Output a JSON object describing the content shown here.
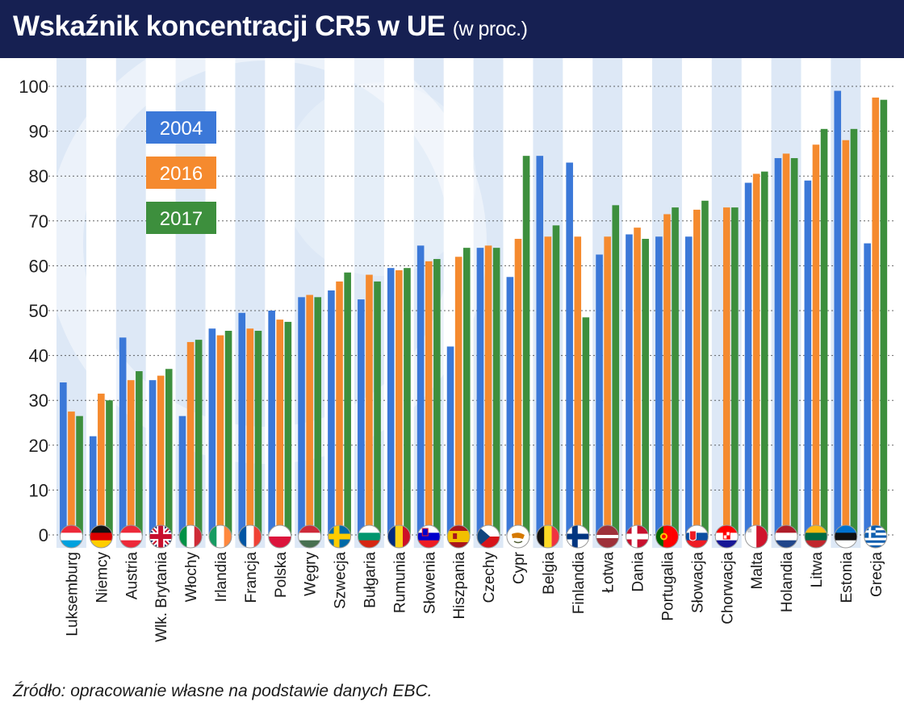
{
  "title": "Wskaźnik koncentracji CR5 w UE",
  "title_suffix": "(w proc.)",
  "source": "Źródło: opracowanie własne na podstawie danych EBC.",
  "colors": {
    "header_bg": "#162052",
    "series_2004": "#3b78d8",
    "series_2016": "#f58a2e",
    "series_2017": "#3d8f3d",
    "stripe": "#dde8f6"
  },
  "chart_data": {
    "type": "bar",
    "ylim": [
      0,
      100
    ],
    "yticks": [
      0,
      10,
      20,
      30,
      40,
      50,
      60,
      70,
      80,
      90,
      100
    ],
    "grid": true,
    "legend_position": "top-left",
    "categories": [
      "Luksemburg",
      "Niemcy",
      "Austria",
      "Wlk. Brytania",
      "Włochy",
      "Irlandia",
      "Francja",
      "Polska",
      "Węgry",
      "Szwecja",
      "Bułgaria",
      "Rumunia",
      "Słowenia",
      "Hiszpania",
      "Czechy",
      "Cypr",
      "Belgia",
      "Finlandia",
      "Łotwa",
      "Dania",
      "Portugalia",
      "Słowacja",
      "Chorwacja",
      "Malta",
      "Holandia",
      "Litwa",
      "Estonia",
      "Grecja"
    ],
    "flag_icons": [
      "flag-luxembourg-icon",
      "flag-germany-icon",
      "flag-austria-icon",
      "flag-uk-icon",
      "flag-italy-icon",
      "flag-ireland-icon",
      "flag-france-icon",
      "flag-poland-icon",
      "flag-hungary-icon",
      "flag-sweden-icon",
      "flag-bulgaria-icon",
      "flag-romania-icon",
      "flag-slovenia-icon",
      "flag-spain-icon",
      "flag-czechia-icon",
      "flag-cyprus-icon",
      "flag-belgium-icon",
      "flag-finland-icon",
      "flag-latvia-icon",
      "flag-denmark-icon",
      "flag-portugal-icon",
      "flag-slovakia-icon",
      "flag-croatia-icon",
      "flag-malta-icon",
      "flag-netherlands-icon",
      "flag-lithuania-icon",
      "flag-estonia-icon",
      "flag-greece-icon"
    ],
    "series": [
      {
        "name": "2004",
        "color": "#3b78d8",
        "values": [
          34,
          22,
          44,
          34.5,
          26.5,
          46,
          49.5,
          50,
          53,
          54.5,
          52.5,
          59.5,
          64.5,
          42,
          64,
          57.5,
          84.5,
          83,
          62.5,
          67,
          66.5,
          66.5,
          null,
          78.5,
          84,
          79,
          99,
          65
        ]
      },
      {
        "name": "2016",
        "color": "#f58a2e",
        "values": [
          27.5,
          31.5,
          34.5,
          35.5,
          43,
          44.5,
          46,
          48,
          53.5,
          56.5,
          58,
          59,
          61,
          62,
          64.5,
          66,
          66.5,
          66.5,
          66.5,
          68.5,
          71.5,
          72.5,
          73,
          80.5,
          85,
          87,
          88,
          97.5
        ]
      },
      {
        "name": "2017",
        "color": "#3d8f3d",
        "values": [
          26.5,
          30,
          36.5,
          37,
          43.5,
          45.5,
          45.5,
          47.5,
          53,
          58.5,
          56.5,
          59.5,
          61.5,
          64,
          64,
          84.5,
          69,
          48.5,
          73.5,
          66,
          73,
          74.5,
          73,
          81,
          84,
          90.5,
          90.5,
          97
        ]
      }
    ]
  }
}
